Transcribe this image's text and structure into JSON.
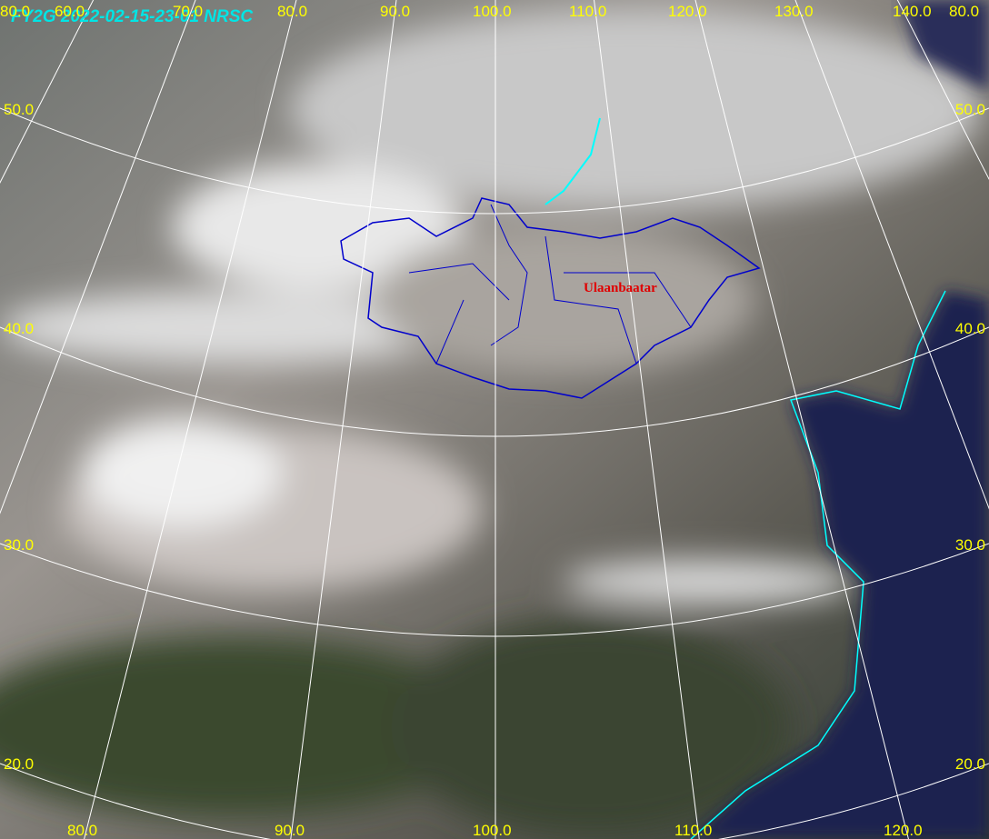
{
  "title": "FY2G  2022-02-15-23-01  NRSC",
  "city": "Ulaanbaatar",
  "top_labels": [
    "80.0",
    "60.0",
    "70.0",
    "80.0",
    "90.0",
    "100.0",
    "110.0",
    "120.0",
    "130.0",
    "140.0",
    "80.0"
  ],
  "left_labels": [
    "50.0",
    "40.0",
    "30.0",
    "20.0"
  ],
  "right_labels": [
    "50.0",
    "40.0",
    "30.0",
    "20.0"
  ],
  "bottom_labels": [
    "80.0",
    "90.0",
    "100.0",
    "110.0",
    "120.0"
  ]
}
